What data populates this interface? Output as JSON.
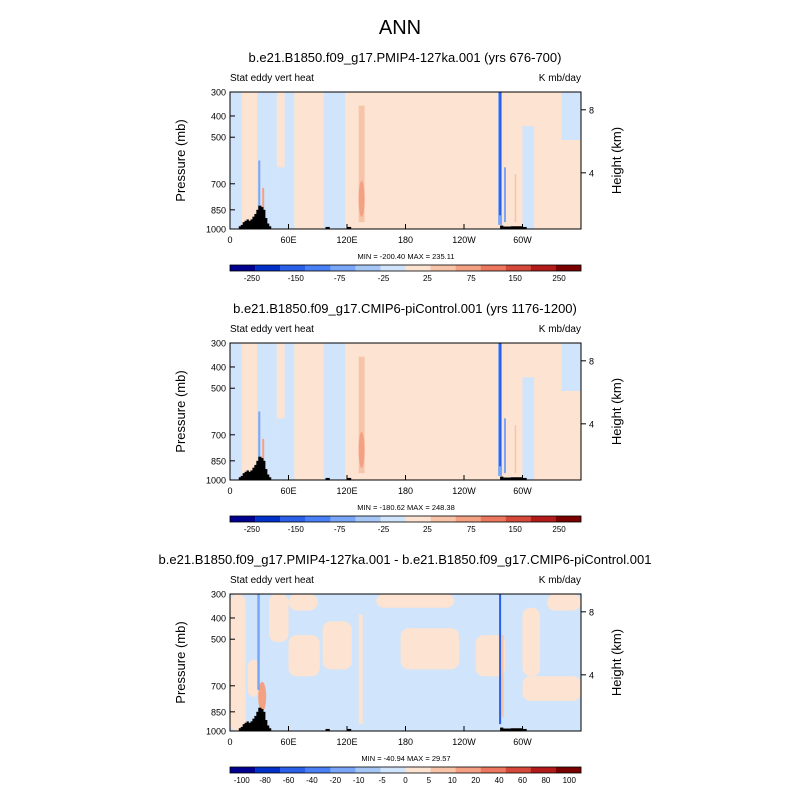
{
  "figure": {
    "main_title": "ANN"
  },
  "palette": {
    "negative": [
      "#000090",
      "#0030c8",
      "#2a5fe8",
      "#4a80f5",
      "#7aa6f7",
      "#a6c6f6",
      "#d0e4fb"
    ],
    "positive": [
      "#fde3d1",
      "#f7c3a9",
      "#f3a182",
      "#eb785e",
      "#d4493a",
      "#b31a1a",
      "#7a0000"
    ],
    "topography": "#000000"
  },
  "chart_data": [
    {
      "type": "heatmap",
      "title": "b.e21.B1850.f09_g17.PMIP4-127ka.001 (yrs 676-700)",
      "left_label": "Stat eddy vert heat",
      "right_label": "K mb/day",
      "ylabel": "Pressure (mb)",
      "ylabel_right": "Height (km)",
      "y_ticks": [
        "300",
        "400",
        "500",
        "700",
        "850",
        "1000"
      ],
      "y_right_ticks": [
        "8",
        "4"
      ],
      "x_ticks": [
        "0",
        "60E",
        "120E",
        "180",
        "120W",
        "60W"
      ],
      "stats": "MIN = -200.40  MAX = 235.11",
      "levels": [
        "-250",
        "-150",
        "-75",
        "-25",
        "25",
        "75",
        "150",
        "250"
      ],
      "ylim": [
        1000,
        300
      ]
    },
    {
      "type": "heatmap",
      "title": "b.e21.B1850.f09_g17.CMIP6-piControl.001 (yrs 1176-1200)",
      "left_label": "Stat eddy vert heat",
      "right_label": "K mb/day",
      "ylabel": "Pressure (mb)",
      "ylabel_right": "Height (km)",
      "y_ticks": [
        "300",
        "400",
        "500",
        "700",
        "850",
        "1000"
      ],
      "y_right_ticks": [
        "8",
        "4"
      ],
      "x_ticks": [
        "0",
        "60E",
        "120E",
        "180",
        "120W",
        "60W"
      ],
      "stats": "MIN = -180.62  MAX = 248.38",
      "levels": [
        "-250",
        "-150",
        "-75",
        "-25",
        "25",
        "75",
        "150",
        "250"
      ],
      "ylim": [
        1000,
        300
      ]
    },
    {
      "type": "heatmap",
      "title": "b.e21.B1850.f09_g17.PMIP4-127ka.001 - b.e21.B1850.f09_g17.CMIP6-piControl.001",
      "left_label": "Stat eddy vert heat",
      "right_label": "K mb/day",
      "ylabel": "Pressure (mb)",
      "ylabel_right": "Height (km)",
      "y_ticks": [
        "300",
        "400",
        "500",
        "700",
        "850",
        "1000"
      ],
      "y_right_ticks": [
        "8",
        "4"
      ],
      "x_ticks": [
        "0",
        "60E",
        "120E",
        "180",
        "120W",
        "60W"
      ],
      "stats": "MIN = -40.94  MAX =  29.57",
      "levels": [
        "-100",
        "-80",
        "-60",
        "-40",
        "-20",
        "-10",
        "-5",
        "0",
        "5",
        "10",
        "20",
        "40",
        "60",
        "80",
        "100"
      ],
      "ylim": [
        1000,
        300
      ]
    }
  ]
}
